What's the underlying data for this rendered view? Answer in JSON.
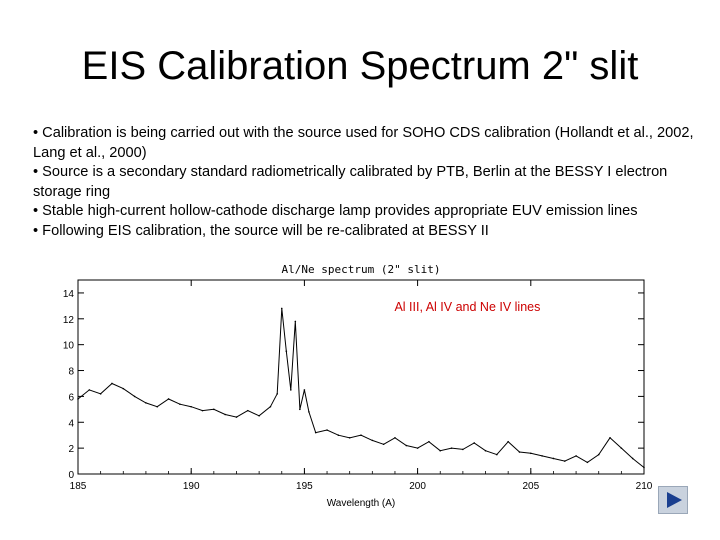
{
  "slide": {
    "title": "EIS Calibration Spectrum 2\" slit",
    "bullets": [
      "• Calibration is being carried out with the source used  for SOHO CDS calibration (Hollandt et al., 2002,   Lang et al., 2000)",
      "• Source is a secondary standard radiometrically calibrated by PTB, Berlin at the BESSY I electron  storage ring",
      "• Stable high-current hollow-cathode discharge lamp provides appropriate EUV emission lines",
      "• Following EIS calibration, the source will be re-calibrated at BESSY II"
    ]
  },
  "chart_data": {
    "type": "line",
    "title": "Al/Ne spectrum (2\" slit)",
    "xlabel": "Wavelength (A)",
    "ylabel": "",
    "xlim": [
      185,
      210
    ],
    "ylim": [
      0,
      15
    ],
    "xticks": [
      185,
      190,
      195,
      200,
      205,
      210
    ],
    "yticks": [
      0,
      2,
      4,
      6,
      8,
      10,
      12,
      14
    ],
    "annotation": {
      "text": "Al III, Al IV and Ne IV lines",
      "color": "#cc0000"
    },
    "series": [
      {
        "x": [
          185.0,
          185.5,
          186.0,
          186.5,
          187.0,
          187.5,
          188.0,
          188.5,
          189.0,
          189.5,
          190.0,
          190.5,
          191.0,
          191.5,
          192.0,
          192.5,
          193.0,
          193.5,
          193.8,
          194.0,
          194.2,
          194.4,
          194.6,
          194.8,
          195.0,
          195.2,
          195.5,
          196.0,
          196.5,
          197.0,
          197.5,
          198.0,
          198.5,
          199.0,
          199.5,
          200.0,
          200.5,
          201.0,
          201.5,
          202.0,
          202.5,
          203.0,
          203.5,
          204.0,
          204.5,
          205.0,
          205.5,
          206.0,
          206.5,
          207.0,
          207.5,
          208.0,
          208.5,
          209.0,
          209.5,
          210.0
        ],
        "y": [
          5.8,
          6.5,
          6.2,
          7.0,
          6.6,
          6.0,
          5.5,
          5.2,
          5.8,
          5.4,
          5.2,
          4.9,
          5.0,
          4.6,
          4.4,
          4.9,
          4.5,
          5.2,
          6.2,
          12.8,
          9.5,
          6.5,
          11.8,
          5.0,
          6.5,
          4.8,
          3.2,
          3.4,
          3.0,
          2.8,
          3.0,
          2.6,
          2.3,
          2.8,
          2.2,
          2.0,
          2.5,
          1.8,
          2.0,
          1.9,
          2.4,
          1.8,
          1.5,
          2.5,
          1.7,
          1.6,
          1.4,
          1.2,
          1.0,
          1.4,
          0.9,
          1.5,
          2.8,
          2.0,
          1.2,
          0.5
        ]
      }
    ]
  },
  "nav": {
    "icon": "play-triangle-icon"
  }
}
